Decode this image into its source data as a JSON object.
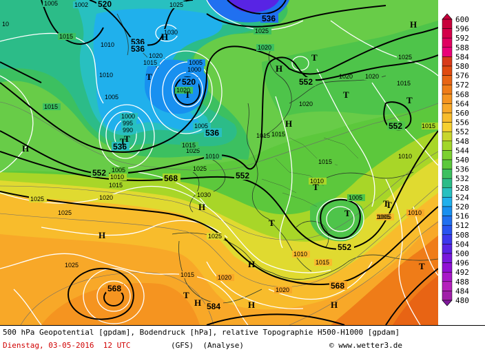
{
  "legend": {
    "values": [
      "600",
      "596",
      "592",
      "588",
      "584",
      "580",
      "576",
      "572",
      "568",
      "564",
      "560",
      "556",
      "552",
      "548",
      "544",
      "540",
      "536",
      "532",
      "528",
      "524",
      "520",
      "516",
      "512",
      "508",
      "504",
      "500",
      "496",
      "492",
      "488",
      "484",
      "480"
    ],
    "colors": [
      "#c8003c",
      "#d4004a",
      "#e00060",
      "#ea0078",
      "#d83a1a",
      "#e04a10",
      "#e86414",
      "#ef7c18",
      "#f59420",
      "#f8a828",
      "#f8bc2c",
      "#f6d030",
      "#c8d62c",
      "#a2d62a",
      "#7cd030",
      "#5cc83c",
      "#3cc060",
      "#2cbc88",
      "#28c0c0",
      "#20b0ec",
      "#1890f0",
      "#2070f0",
      "#2854f0",
      "#3c38ec",
      "#5824e4",
      "#7818dc",
      "#9010d4",
      "#a818c8",
      "#b420bc",
      "#a020a8",
      "#80189c"
    ]
  },
  "map": {
    "pressure_labels": [
      {
        "t": "1005",
        "c": "w"
      },
      {
        "t": "1002",
        "c": "w"
      },
      {
        "t": "1025",
        "c": "w"
      },
      {
        "t": "1010",
        "c": "w"
      },
      {
        "t": "1015",
        "c": "w"
      },
      {
        "t": "1030",
        "c": "w"
      },
      {
        "t": "1020",
        "c": "w"
      },
      {
        "t": "1015",
        "c": "w"
      },
      {
        "t": "1025",
        "c": "w"
      },
      {
        "t": "1010",
        "c": "w"
      },
      {
        "t": "1005",
        "c": "w"
      },
      {
        "t": "1000",
        "c": "w"
      },
      {
        "t": "1005",
        "c": "w"
      },
      {
        "t": "1020",
        "c": "w"
      },
      {
        "t": "1015",
        "c": "w"
      },
      {
        "t": "1005",
        "c": "w"
      },
      {
        "t": "1000",
        "c": "w"
      },
      {
        "t": "995",
        "c": "w"
      },
      {
        "t": "990",
        "c": "w"
      },
      {
        "t": "1005",
        "c": "w"
      },
      {
        "t": "1025",
        "c": "w"
      },
      {
        "t": "1015",
        "c": "w"
      },
      {
        "t": "1020",
        "c": "w"
      },
      {
        "t": "1015",
        "c": "w"
      },
      {
        "t": "1010",
        "c": "w"
      },
      {
        "t": "1025",
        "c": "w"
      },
      {
        "t": "1030",
        "c": "w"
      },
      {
        "t": "1025",
        "c": "w"
      },
      {
        "t": "1025",
        "c": "w"
      },
      {
        "t": "1025",
        "c": "w"
      },
      {
        "t": "1020",
        "c": "w"
      },
      {
        "t": "1020",
        "c": "w"
      },
      {
        "t": "1015",
        "c": "w"
      },
      {
        "t": "1010",
        "c": "w"
      },
      {
        "t": "1015",
        "c": "w"
      },
      {
        "t": "1010",
        "c": "w"
      },
      {
        "t": "1005",
        "c": "w"
      },
      {
        "t": "1005",
        "c": "w"
      },
      {
        "t": "1010",
        "c": "w"
      },
      {
        "t": "1015",
        "c": "w"
      },
      {
        "t": "1010",
        "c": "w"
      },
      {
        "t": "1020",
        "c": "w"
      },
      {
        "t": "1015",
        "c": "w"
      },
      {
        "t": "1025",
        "c": "w"
      },
      {
        "t": "1025",
        "c": "w"
      },
      {
        "t": "1020",
        "c": "w"
      },
      {
        "t": "1020",
        "c": "w"
      },
      {
        "t": "1015",
        "c": "w"
      },
      {
        "t": "1015",
        "c": "w"
      },
      {
        "t": "1010",
        "c": "w"
      },
      {
        "t": "10",
        "c": "w"
      },
      {
        "t": "1015",
        "c": "w"
      },
      {
        "t": "1020",
        "c": "w"
      },
      {
        "t": "1005",
        "c": "w"
      }
    ],
    "geopotential_labels": [
      "520",
      "536",
      "536",
      "520",
      "536",
      "536",
      "552",
      "552",
      "568",
      "552",
      "552",
      "552",
      "568",
      "568",
      "584",
      "536"
    ],
    "systems": [
      "H",
      "H",
      "T",
      "T",
      "T",
      "T",
      "H",
      "H",
      "T",
      "T",
      "H",
      "T",
      "T",
      "H",
      "H",
      "T",
      "H",
      "H",
      "T",
      "T",
      "T",
      "H",
      "T",
      "H",
      "T"
    ]
  },
  "footer": {
    "caption": "500 hPa Geopotential [gpdam], Bodendruck [hPa], relative Topographie H500-H1000 [gpdam]",
    "date": "Dienstag, 03-05-2016  12 UTC",
    "model": "(GFS)  (Analyse)",
    "copyright": "© www.wetter3.de"
  }
}
